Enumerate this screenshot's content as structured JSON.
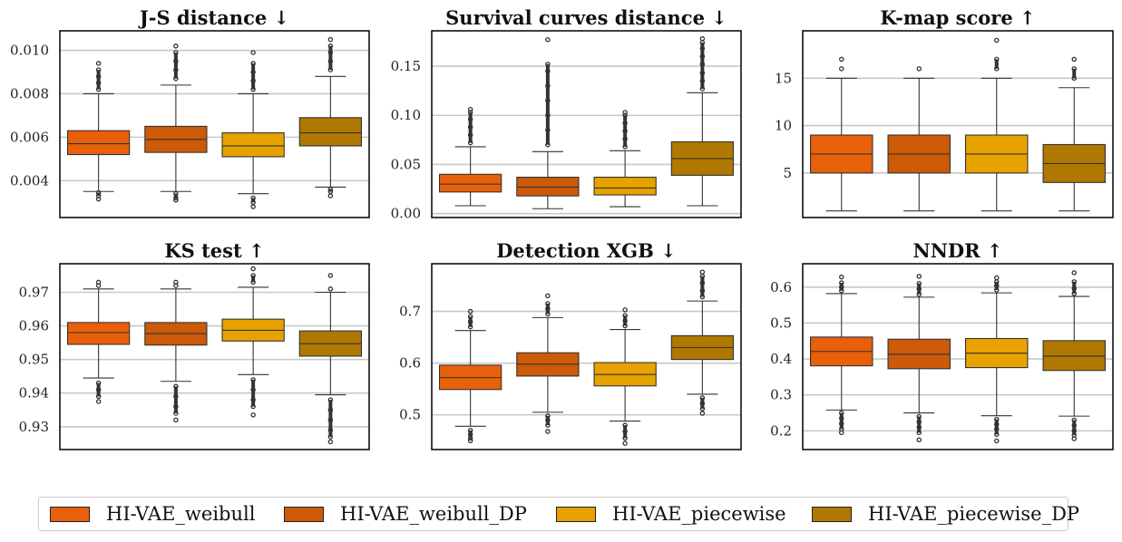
{
  "colors": {
    "series": [
      "#e8600a",
      "#cc5a08",
      "#e8a200",
      "#b07800"
    ],
    "grid": "#c8c8c8",
    "whisker": "#333333",
    "frame": "#000000"
  },
  "legend": {
    "items": [
      {
        "label": "HI-VAE_weibull"
      },
      {
        "label": "HI-VAE_weibull_DP"
      },
      {
        "label": "HI-VAE_piecewise"
      },
      {
        "label": "HI-VAE_piecewise_DP"
      }
    ]
  },
  "chart_data": [
    {
      "type": "box",
      "title": "J-S distance ↓",
      "ylim": [
        0.0023,
        0.0109
      ],
      "yticks": [
        0.004,
        0.006,
        0.008,
        0.01
      ],
      "yticklabels": [
        "0.004",
        "0.006",
        "0.008",
        "0.010"
      ],
      "series": [
        {
          "name": "HI-VAE_weibull",
          "whislo": 0.0035,
          "q1": 0.0052,
          "med": 0.0057,
          "q3": 0.0063,
          "whishi": 0.008,
          "fliers_low": [
            0.00345,
            0.0033,
            0.00315
          ],
          "fliers_high": [
            0.0082,
            0.0085,
            0.0088,
            0.0091,
            0.0094
          ]
        },
        {
          "name": "HI-VAE_weibull_DP",
          "whislo": 0.0035,
          "q1": 0.0053,
          "med": 0.0059,
          "q3": 0.0065,
          "whishi": 0.0084,
          "fliers_low": [
            0.0034,
            0.0032,
            0.0031
          ],
          "fliers_high": [
            0.0087,
            0.0091,
            0.0095,
            0.0099,
            0.0102
          ]
        },
        {
          "name": "HI-VAE_piecewise",
          "whislo": 0.0034,
          "q1": 0.0051,
          "med": 0.0056,
          "q3": 0.0062,
          "whishi": 0.008,
          "fliers_low": [
            0.0032,
            0.003,
            0.0028
          ],
          "fliers_high": [
            0.0082,
            0.0086,
            0.009,
            0.0094,
            0.0099
          ]
        },
        {
          "name": "HI-VAE_piecewise_DP",
          "whislo": 0.0037,
          "q1": 0.0056,
          "med": 0.0062,
          "q3": 0.0069,
          "whishi": 0.0088,
          "fliers_low": [
            0.0036,
            0.0035,
            0.0033
          ],
          "fliers_high": [
            0.0091,
            0.0095,
            0.0099,
            0.0102,
            0.0105
          ]
        }
      ]
    },
    {
      "type": "box",
      "title": "Survival curves distance ↓",
      "ylim": [
        -0.004,
        0.186
      ],
      "yticks": [
        0.0,
        0.05,
        0.1,
        0.15
      ],
      "yticklabels": [
        "0.00",
        "0.05",
        "0.10",
        "0.15"
      ],
      "series": [
        {
          "name": "HI-VAE_weibull",
          "whislo": 0.008,
          "q1": 0.022,
          "med": 0.03,
          "q3": 0.04,
          "whishi": 0.068,
          "fliers_low": [],
          "fliers_high": [
            0.072,
            0.08,
            0.088,
            0.096,
            0.103,
            0.106
          ]
        },
        {
          "name": "HI-VAE_weibull_DP",
          "whislo": 0.005,
          "q1": 0.018,
          "med": 0.027,
          "q3": 0.037,
          "whishi": 0.063,
          "fliers_low": [],
          "fliers_high": [
            0.07,
            0.085,
            0.1,
            0.115,
            0.13,
            0.145,
            0.152,
            0.177
          ]
        },
        {
          "name": "HI-VAE_piecewise",
          "whislo": 0.007,
          "q1": 0.019,
          "med": 0.026,
          "q3": 0.037,
          "whishi": 0.064,
          "fliers_low": [],
          "fliers_high": [
            0.068,
            0.076,
            0.084,
            0.092,
            0.1,
            0.103
          ]
        },
        {
          "name": "HI-VAE_piecewise_DP",
          "whislo": 0.008,
          "q1": 0.039,
          "med": 0.056,
          "q3": 0.073,
          "whishi": 0.123,
          "fliers_low": [],
          "fliers_high": [
            0.127,
            0.135,
            0.143,
            0.152,
            0.16,
            0.168,
            0.174,
            0.178
          ]
        }
      ]
    },
    {
      "type": "box",
      "title": "K-map score ↑",
      "ylim": [
        0.3,
        20.0
      ],
      "yticks": [
        5,
        10,
        15
      ],
      "yticklabels": [
        "5",
        "10",
        "15"
      ],
      "series": [
        {
          "name": "HI-VAE_weibull",
          "whislo": 1,
          "q1": 5,
          "med": 7,
          "q3": 9,
          "whishi": 15,
          "fliers_low": [],
          "fliers_high": [
            16,
            17
          ]
        },
        {
          "name": "HI-VAE_weibull_DP",
          "whislo": 1,
          "q1": 5,
          "med": 7,
          "q3": 9,
          "whishi": 15,
          "fliers_low": [],
          "fliers_high": [
            16
          ]
        },
        {
          "name": "HI-VAE_piecewise",
          "whislo": 1,
          "q1": 5,
          "med": 7,
          "q3": 9,
          "whishi": 15,
          "fliers_low": [],
          "fliers_high": [
            16,
            17,
            19
          ]
        },
        {
          "name": "HI-VAE_piecewise_DP",
          "whislo": 1,
          "q1": 4,
          "med": 6,
          "q3": 8,
          "whishi": 14,
          "fliers_low": [],
          "fliers_high": [
            15,
            16,
            17
          ]
        }
      ]
    },
    {
      "type": "box",
      "title": "KS test ↑",
      "ylim": [
        0.9232,
        0.9785
      ],
      "yticks": [
        0.93,
        0.94,
        0.95,
        0.96,
        0.97
      ],
      "yticklabels": [
        "0.93",
        "0.94",
        "0.95",
        "0.96",
        "0.97"
      ],
      "series": [
        {
          "name": "HI-VAE_weibull",
          "whislo": 0.9445,
          "q1": 0.9545,
          "med": 0.958,
          "q3": 0.961,
          "whishi": 0.971,
          "fliers_low": [
            0.943,
            0.941,
            0.939,
            0.9375
          ],
          "fliers_high": [
            0.972,
            0.973
          ]
        },
        {
          "name": "HI-VAE_weibull_DP",
          "whislo": 0.9435,
          "q1": 0.9543,
          "med": 0.9577,
          "q3": 0.961,
          "whishi": 0.971,
          "fliers_low": [
            0.942,
            0.939,
            0.936,
            0.934,
            0.932
          ],
          "fliers_high": [
            0.972,
            0.973
          ]
        },
        {
          "name": "HI-VAE_piecewise",
          "whislo": 0.9455,
          "q1": 0.9555,
          "med": 0.9587,
          "q3": 0.962,
          "whishi": 0.9715,
          "fliers_low": [
            0.944,
            0.941,
            0.938,
            0.936,
            0.9335
          ],
          "fliers_high": [
            0.973,
            0.975,
            0.977
          ]
        },
        {
          "name": "HI-VAE_piecewise_DP",
          "whislo": 0.9395,
          "q1": 0.951,
          "med": 0.9547,
          "q3": 0.9585,
          "whishi": 0.97,
          "fliers_low": [
            0.938,
            0.935,
            0.932,
            0.929,
            0.927,
            0.9255
          ],
          "fliers_high": [
            0.971,
            0.975
          ]
        }
      ]
    },
    {
      "type": "box",
      "title": "Detection XGB ↓",
      "ylim": [
        0.433,
        0.792
      ],
      "yticks": [
        0.5,
        0.6,
        0.7
      ],
      "yticklabels": [
        "0.5",
        "0.6",
        "0.7"
      ],
      "series": [
        {
          "name": "HI-VAE_weibull",
          "whislo": 0.478,
          "q1": 0.549,
          "med": 0.572,
          "q3": 0.596,
          "whishi": 0.663,
          "fliers_low": [
            0.47,
            0.462,
            0.455,
            0.45
          ],
          "fliers_high": [
            0.67,
            0.68,
            0.69,
            0.7
          ]
        },
        {
          "name": "HI-VAE_weibull_DP",
          "whislo": 0.505,
          "q1": 0.575,
          "med": 0.598,
          "q3": 0.62,
          "whishi": 0.688,
          "fliers_low": [
            0.498,
            0.49,
            0.48,
            0.468
          ],
          "fliers_high": [
            0.695,
            0.705,
            0.715,
            0.73
          ]
        },
        {
          "name": "HI-VAE_piecewise",
          "whislo": 0.488,
          "q1": 0.556,
          "med": 0.578,
          "q3": 0.601,
          "whishi": 0.665,
          "fliers_low": [
            0.48,
            0.468,
            0.455,
            0.445
          ],
          "fliers_high": [
            0.672,
            0.682,
            0.692,
            0.703
          ]
        },
        {
          "name": "HI-VAE_piecewise_DP",
          "whislo": 0.54,
          "q1": 0.607,
          "med": 0.63,
          "q3": 0.653,
          "whishi": 0.72,
          "fliers_low": [
            0.533,
            0.522,
            0.512,
            0.503
          ],
          "fliers_high": [
            0.728,
            0.74,
            0.755,
            0.768,
            0.776
          ]
        }
      ]
    },
    {
      "type": "box",
      "title": "NNDR ↑",
      "ylim": [
        0.148,
        0.665
      ],
      "yticks": [
        0.2,
        0.3,
        0.4,
        0.5,
        0.6
      ],
      "yticklabels": [
        "0.2",
        "0.3",
        "0.4",
        "0.5",
        "0.6"
      ],
      "series": [
        {
          "name": "HI-VAE_weibull",
          "whislo": 0.258,
          "q1": 0.381,
          "med": 0.421,
          "q3": 0.461,
          "whishi": 0.582,
          "fliers_low": [
            0.25,
            0.235,
            0.22,
            0.205,
            0.195
          ],
          "fliers_high": [
            0.59,
            0.6,
            0.612,
            0.628
          ]
        },
        {
          "name": "HI-VAE_weibull_DP",
          "whislo": 0.25,
          "q1": 0.373,
          "med": 0.413,
          "q3": 0.455,
          "whishi": 0.572,
          "fliers_low": [
            0.24,
            0.225,
            0.21,
            0.195,
            0.175
          ],
          "fliers_high": [
            0.58,
            0.595,
            0.61,
            0.63
          ]
        },
        {
          "name": "HI-VAE_piecewise",
          "whislo": 0.242,
          "q1": 0.376,
          "med": 0.416,
          "q3": 0.457,
          "whishi": 0.584,
          "fliers_low": [
            0.232,
            0.218,
            0.205,
            0.19,
            0.172
          ],
          "fliers_high": [
            0.592,
            0.604,
            0.615,
            0.626
          ]
        },
        {
          "name": "HI-VAE_piecewise_DP",
          "whislo": 0.241,
          "q1": 0.368,
          "med": 0.408,
          "q3": 0.451,
          "whishi": 0.574,
          "fliers_low": [
            0.23,
            0.215,
            0.2,
            0.188,
            0.178
          ],
          "fliers_high": [
            0.582,
            0.596,
            0.615,
            0.64
          ]
        }
      ]
    }
  ]
}
